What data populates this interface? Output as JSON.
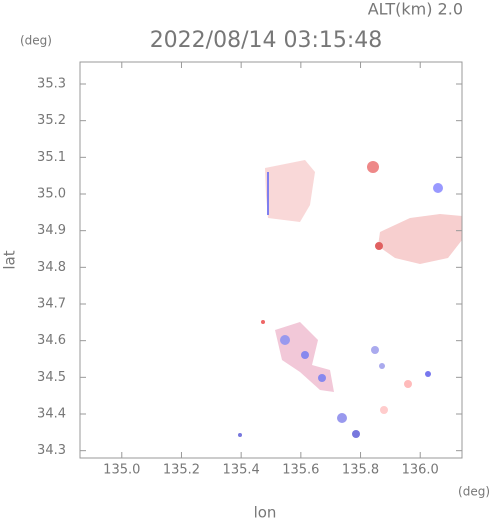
{
  "chart_data": {
    "type": "radar-map",
    "title": "2022/08/14 03:15:48",
    "subtitle": "ALT(km) 2.0",
    "x_label": "lon",
    "y_label": "lat",
    "x_unit": "(deg)",
    "y_unit": "(deg)",
    "xlim": [
      134.86,
      136.14
    ],
    "ylim": [
      34.28,
      35.36
    ],
    "xticks": [
      {
        "value": 135,
        "label": "135.0"
      },
      135.2,
      135.4,
      135.6,
      135.8,
      {
        "value": 136,
        "label": "136.0"
      }
    ],
    "yticks": [
      34.3,
      34.4,
      34.5,
      34.6,
      34.7,
      34.8,
      34.9,
      {
        "value": 35,
        "label": "35.0"
      },
      35.1,
      35.2,
      35.3
    ]
  }
}
